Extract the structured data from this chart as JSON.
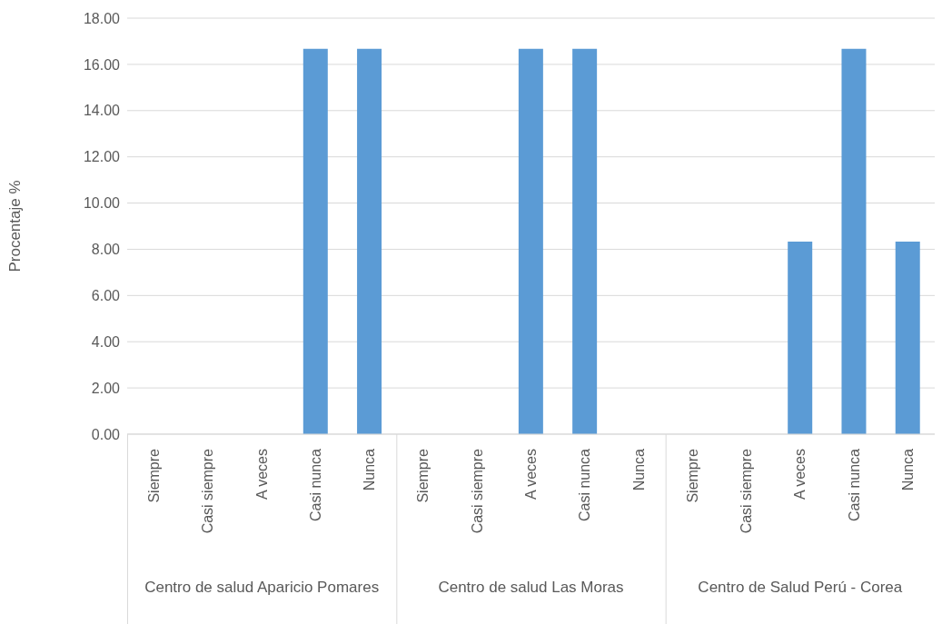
{
  "chart_data": {
    "type": "bar",
    "ylabel": "Procentaje %",
    "categories": [
      "Siempre",
      "Casi siempre",
      "A veces",
      "Casi nunca",
      "Nunca",
      "Siempre",
      "Casi siempre",
      "A veces",
      "Casi nunca",
      "Nunca",
      "Siempre",
      "Casi siempre",
      "A veces",
      "Casi nunca",
      "Nunca"
    ],
    "values": [
      0,
      0,
      0,
      16.67,
      16.67,
      0,
      0,
      16.67,
      16.67,
      0,
      0,
      0,
      8.33,
      16.67,
      8.33
    ],
    "color": "#5b9bd5",
    "ylim": [
      0,
      18
    ],
    "yticks": [
      {
        "value": 0,
        "label": "0.00"
      },
      {
        "value": 2,
        "label": "2.00"
      },
      {
        "value": 4,
        "label": "4.00"
      },
      {
        "value": 6,
        "label": "6.00"
      },
      {
        "value": 8,
        "label": "8.00"
      },
      {
        "value": 10,
        "label": "10.00"
      },
      {
        "value": 12,
        "label": "12.00"
      },
      {
        "value": 14,
        "label": "14.00"
      },
      {
        "value": 16,
        "label": "16.00"
      },
      {
        "value": 18,
        "label": "18.00"
      }
    ],
    "grid": "y",
    "legend": false,
    "annotations": [
      "Centro de salud Aparicio Pomares",
      "Centro de salud Las Moras",
      "Centro de Salud Perú - Corea"
    ]
  }
}
